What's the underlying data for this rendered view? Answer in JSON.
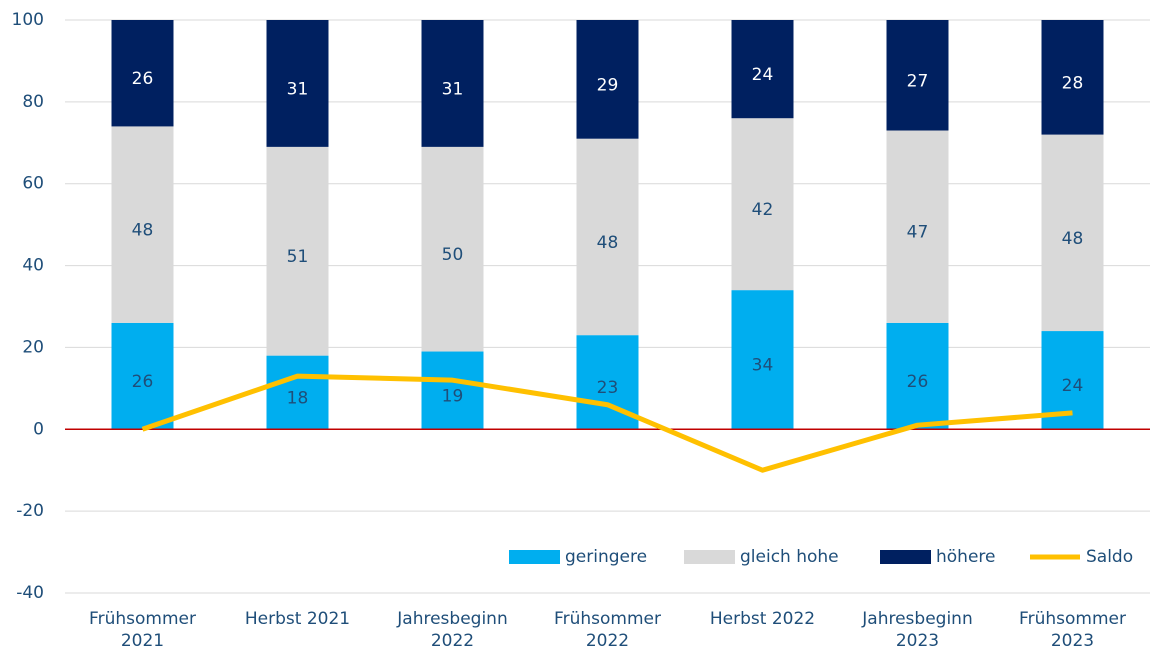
{
  "chart_data": {
    "type": "stacked-bar-line",
    "categories": [
      [
        "Frühsommer",
        "2021"
      ],
      [
        "Herbst 2021"
      ],
      [
        "Jahresbeginn",
        "2022"
      ],
      [
        "Frühsommer",
        "2022"
      ],
      [
        "Herbst 2022"
      ],
      [
        "Jahresbeginn",
        "2023"
      ],
      [
        "Frühsommer",
        "2023"
      ]
    ],
    "series": [
      {
        "name": "geringere",
        "type": "bar",
        "color": "#00aeef",
        "values": [
          26,
          18,
          19,
          23,
          34,
          26,
          24
        ]
      },
      {
        "name": "gleich hohe",
        "type": "bar",
        "color": "#d9d9d9",
        "values": [
          48,
          51,
          50,
          48,
          42,
          47,
          48
        ]
      },
      {
        "name": "höhere",
        "type": "bar",
        "color": "#002060",
        "values": [
          26,
          31,
          31,
          29,
          24,
          27,
          28
        ]
      },
      {
        "name": "Saldo",
        "type": "line",
        "color": "#ffc000",
        "values": [
          0,
          13,
          12,
          6,
          -10,
          1,
          4
        ]
      }
    ],
    "ylim": [
      -40,
      100
    ],
    "yticks": [
      -40,
      -20,
      0,
      20,
      40,
      60,
      80,
      100
    ],
    "grid": true,
    "legend": "lower right"
  }
}
